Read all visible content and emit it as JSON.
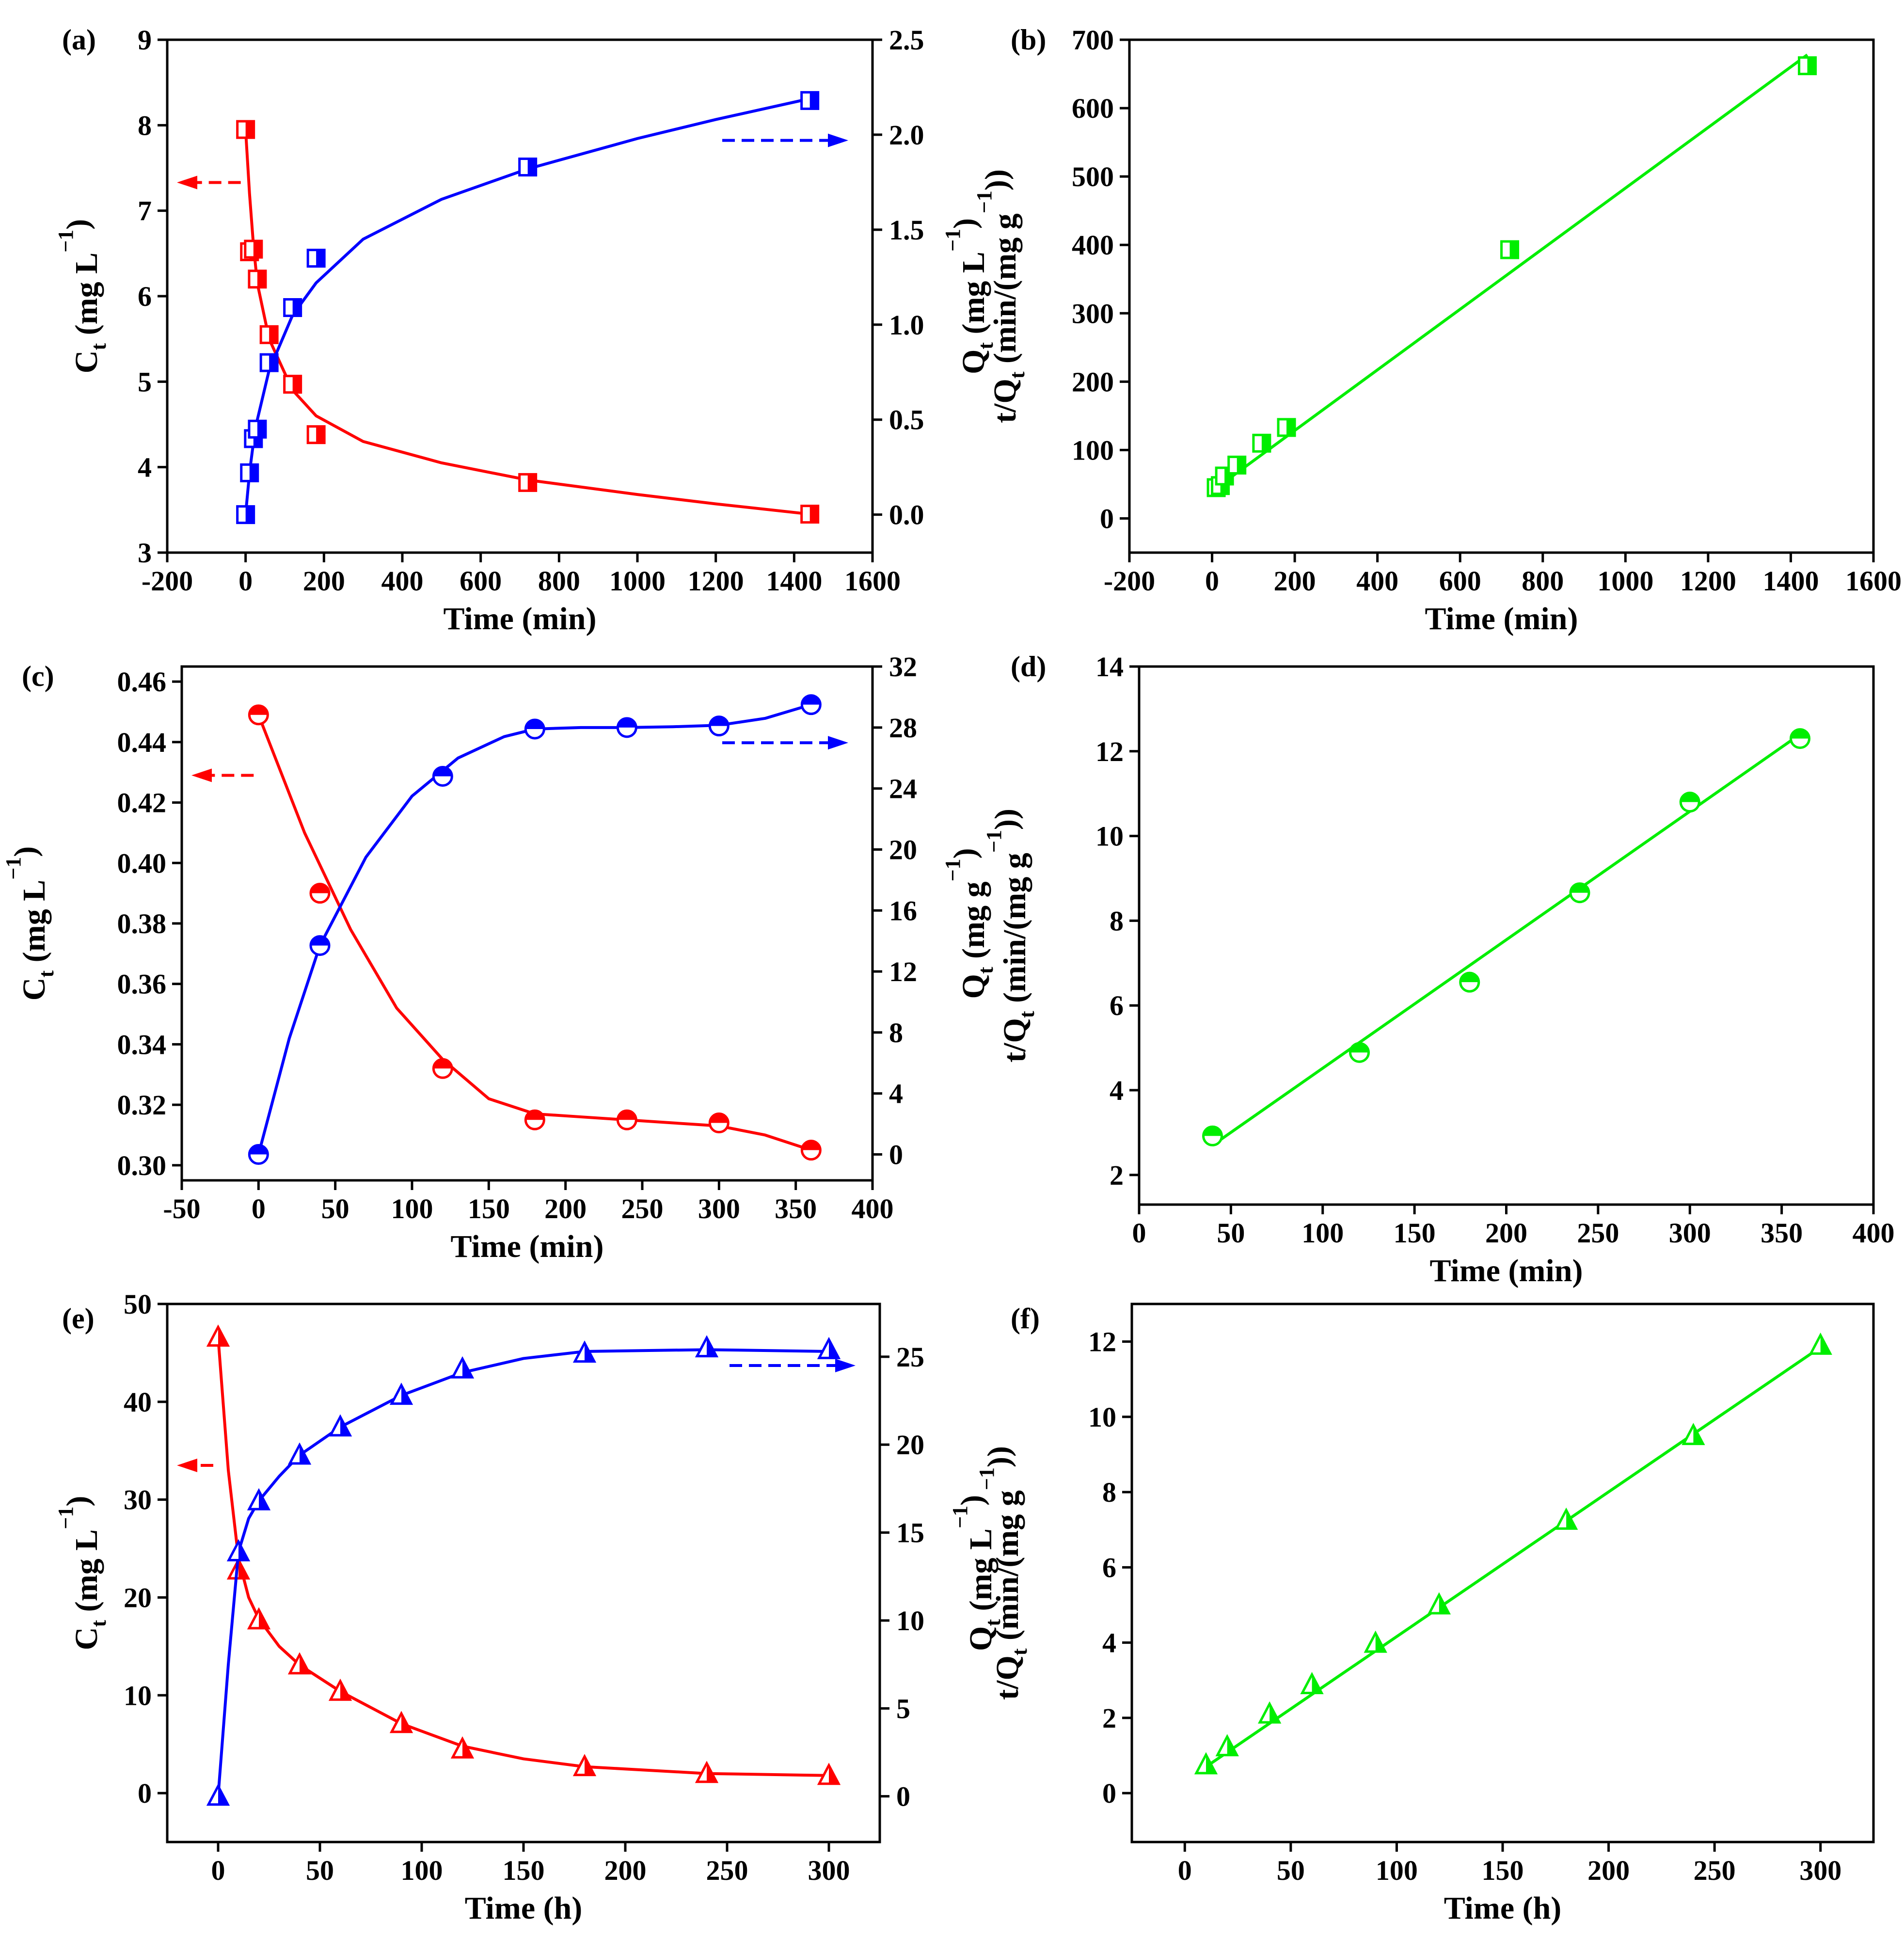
{
  "figure": {
    "colors": {
      "ct": "#ff0000",
      "qt": "#0000ff",
      "linear": "#00ee00",
      "axis": "#000000"
    },
    "markers": {
      "a": "square",
      "b": "square",
      "c": "circle",
      "d": "circle",
      "e": "triangle",
      "f": "triangle"
    }
  },
  "chart_data": [
    {
      "panel": "a",
      "label": "(a)",
      "type": "scatter",
      "xlabel": "Time (min)",
      "xlim": [
        -200,
        1600
      ],
      "xticks": [
        -200,
        0,
        200,
        400,
        600,
        800,
        1000,
        1200,
        1400,
        1600
      ],
      "ylabel": {
        "main": "C",
        "sub": "t",
        "unit": " (mg L",
        "sup": "−1",
        "close": ")"
      },
      "ylim": [
        3,
        9
      ],
      "yticks": [
        3,
        4,
        5,
        6,
        7,
        8,
        9
      ],
      "y2label": {
        "main": "Q",
        "sub": "t",
        "unit": " (mg L",
        "sup": "−1",
        "close": ")"
      },
      "y2lim": [
        -0.2,
        2.5
      ],
      "y2ticks": [
        "0.0",
        "0.5",
        "1.0",
        "1.5",
        "2.0",
        "2.5"
      ],
      "y2tickvals": [
        0,
        0.5,
        1.0,
        1.5,
        2.0,
        2.5
      ],
      "series": [
        {
          "name": "Ct",
          "axis": "left",
          "color": "#ff0000",
          "x": [
            0,
            10,
            20,
            30,
            60,
            120,
            180,
            720,
            1440
          ],
          "y": [
            7.95,
            6.52,
            6.55,
            6.2,
            5.55,
            4.97,
            4.38,
            3.82,
            3.45
          ],
          "fit_x": [
            0,
            10,
            20,
            30,
            60,
            120,
            180,
            300,
            500,
            720,
            1000,
            1200,
            1440
          ],
          "fit_y": [
            7.95,
            7.2,
            6.6,
            6.15,
            5.5,
            4.9,
            4.6,
            4.3,
            4.05,
            3.85,
            3.68,
            3.57,
            3.45
          ],
          "arrow": "left",
          "arrow_y": 7.33
        },
        {
          "name": "Qt",
          "axis": "right",
          "color": "#0000ff",
          "x": [
            0,
            10,
            20,
            30,
            60,
            120,
            180,
            720,
            1440
          ],
          "y": [
            0.0,
            0.22,
            0.4,
            0.45,
            0.8,
            1.09,
            1.35,
            1.83,
            2.18
          ],
          "fit_x": [
            0,
            10,
            20,
            30,
            60,
            120,
            180,
            300,
            500,
            720,
            1000,
            1200,
            1440
          ],
          "fit_y": [
            0.0,
            0.22,
            0.38,
            0.5,
            0.76,
            1.05,
            1.22,
            1.45,
            1.66,
            1.82,
            1.98,
            2.08,
            2.19
          ],
          "arrow": "right",
          "arrow_y": 1.97
        }
      ]
    },
    {
      "panel": "b",
      "label": "(b)",
      "type": "scatter",
      "xlabel": "Time (min)",
      "xlim": [
        -200,
        1600
      ],
      "xticks": [
        -200,
        0,
        200,
        400,
        600,
        800,
        1000,
        1200,
        1400,
        1600
      ],
      "ylabel": {
        "main": "t/Q",
        "sub": "t",
        "unit": " (min/(mg g",
        "sup": "−1",
        "close": "))"
      },
      "ylim": [
        -50,
        700
      ],
      "yticks": [
        0,
        100,
        200,
        300,
        400,
        500,
        600,
        700
      ],
      "series": [
        {
          "name": "t/Qt",
          "color": "#00ee00",
          "x": [
            10,
            20,
            30,
            60,
            120,
            180,
            720,
            1440
          ],
          "y": [
            45,
            48,
            62,
            78,
            110,
            133,
            393,
            662
          ],
          "fit_x": [
            0,
            1440
          ],
          "fit_y": [
            40,
            678
          ]
        }
      ]
    },
    {
      "panel": "c",
      "label": "(c)",
      "type": "scatter",
      "xlabel": "Time (min)",
      "xlim": [
        -50,
        400
      ],
      "xticks": [
        -50,
        0,
        50,
        100,
        150,
        200,
        250,
        300,
        350,
        400
      ],
      "ylabel": {
        "main": "C",
        "sub": "t",
        "unit": " (mg L",
        "sup": "−1",
        "close": ")"
      },
      "ylim": [
        0.295,
        0.465
      ],
      "yticks": [
        "0.30",
        "0.32",
        "0.34",
        "0.36",
        "0.38",
        "0.40",
        "0.42",
        "0.44",
        "0.46"
      ],
      "ytickvals": [
        0.3,
        0.32,
        0.34,
        0.36,
        0.38,
        0.4,
        0.42,
        0.44,
        0.46
      ],
      "y2label": {
        "main": "Q",
        "sub": "t",
        "unit": " (mg g",
        "sup": "−1",
        "close": ")"
      },
      "y2lim": [
        -1.7,
        32
      ],
      "y2ticks": [
        "0",
        "4",
        "8",
        "12",
        "16",
        "20",
        "24",
        "28",
        "32"
      ],
      "y2tickvals": [
        0,
        4,
        8,
        12,
        16,
        20,
        24,
        28,
        32
      ],
      "series": [
        {
          "name": "Ct",
          "axis": "left",
          "color": "#ff0000",
          "x": [
            0,
            40,
            120,
            180,
            240,
            300,
            360
          ],
          "y": [
            0.449,
            0.39,
            0.332,
            0.315,
            0.315,
            0.314,
            0.305
          ],
          "fit_x": [
            0,
            30,
            60,
            90,
            120,
            150,
            180,
            210,
            240,
            270,
            300,
            330,
            360
          ],
          "fit_y": [
            0.449,
            0.41,
            0.378,
            0.352,
            0.335,
            0.322,
            0.317,
            0.316,
            0.315,
            0.314,
            0.313,
            0.31,
            0.305
          ],
          "arrow": "left",
          "arrow_y": 0.429
        },
        {
          "name": "Qt",
          "axis": "right",
          "color": "#0000ff",
          "x": [
            0,
            40,
            120,
            180,
            240,
            300,
            360
          ],
          "y": [
            0.0,
            13.7,
            24.8,
            27.9,
            28.0,
            28.1,
            29.5
          ],
          "fit_x": [
            0,
            20,
            40,
            70,
            100,
            130,
            160,
            180,
            210,
            240,
            270,
            300,
            330,
            360
          ],
          "fit_y": [
            0.0,
            7.6,
            13.7,
            19.5,
            23.5,
            26.0,
            27.4,
            27.9,
            28.0,
            28.0,
            28.05,
            28.15,
            28.6,
            29.5
          ],
          "arrow": "right",
          "arrow_y": 27.0
        }
      ]
    },
    {
      "panel": "d",
      "label": "(d)",
      "type": "scatter",
      "xlabel": "Time (min)",
      "xlim": [
        0,
        400
      ],
      "xticks": [
        0,
        50,
        100,
        150,
        200,
        250,
        300,
        350,
        400
      ],
      "ylabel": {
        "main": "t/Q",
        "sub": "t",
        "unit": " (min/(mg g",
        "sup": "−1",
        "close": "))"
      },
      "ylim": [
        1.3,
        14
      ],
      "yticks": [
        2,
        4,
        6,
        8,
        10,
        12,
        14
      ],
      "series": [
        {
          "name": "t/Qt",
          "color": "#00ee00",
          "x": [
            40,
            120,
            180,
            240,
            300,
            360
          ],
          "y": [
            2.92,
            4.89,
            6.55,
            8.66,
            10.8,
            12.3
          ],
          "fit_x": [
            40,
            360
          ],
          "fit_y": [
            2.7,
            12.4
          ]
        }
      ]
    },
    {
      "panel": "e",
      "label": "(e)",
      "type": "scatter",
      "xlabel": "Time (h)",
      "xlim": [
        -25,
        325
      ],
      "xticks": [
        0,
        50,
        100,
        150,
        200,
        250,
        300
      ],
      "ylabel": {
        "main": "C",
        "sub": "t",
        "unit": " (mg L",
        "sup": "−1",
        "close": ")"
      },
      "ylim": [
        -5,
        50
      ],
      "yticks": [
        0,
        10,
        20,
        30,
        40,
        50
      ],
      "y2label": {
        "main": "Q",
        "sub": "t",
        "unit": " (mg L",
        "sup": "−1",
        "close": ")"
      },
      "y2lim": [
        -2.6,
        28
      ],
      "y2ticks": [
        "0",
        "5",
        "10",
        "15",
        "20",
        "25"
      ],
      "y2tickvals": [
        0,
        5,
        10,
        15,
        20,
        25
      ],
      "series": [
        {
          "name": "Ct",
          "axis": "left",
          "color": "#ff0000",
          "x": [
            0,
            10,
            20,
            40,
            60,
            90,
            120,
            180,
            240,
            300
          ],
          "y": [
            46.6,
            22.8,
            17.7,
            13.1,
            10.4,
            7.1,
            4.5,
            2.7,
            2.0,
            1.8
          ],
          "fit_x": [
            0,
            5,
            10,
            15,
            20,
            30,
            40,
            60,
            90,
            120,
            150,
            180,
            240,
            300
          ],
          "fit_y": [
            46.6,
            33.0,
            24.0,
            20.0,
            17.8,
            15.0,
            13.1,
            10.4,
            7.1,
            4.8,
            3.5,
            2.7,
            2.0,
            1.8
          ],
          "arrow": "left",
          "arrow_y": 33.5
        },
        {
          "name": "Qt",
          "axis": "right",
          "color": "#0000ff",
          "x": [
            0,
            10,
            20,
            40,
            60,
            90,
            120,
            180,
            240,
            300
          ],
          "y": [
            0.0,
            13.9,
            16.8,
            19.4,
            21.0,
            22.8,
            24.3,
            25.2,
            25.5,
            25.4
          ],
          "fit_x": [
            0,
            5,
            10,
            15,
            20,
            30,
            40,
            60,
            90,
            120,
            150,
            180,
            240,
            300
          ],
          "fit_y": [
            0.0,
            7.5,
            13.9,
            15.8,
            16.8,
            18.2,
            19.4,
            21.0,
            22.8,
            24.1,
            24.9,
            25.3,
            25.4,
            25.3
          ],
          "arrow": "right",
          "arrow_y": 24.5
        }
      ]
    },
    {
      "panel": "f",
      "label": "(f)",
      "type": "scatter",
      "xlabel": "Time (h)",
      "xlim": [
        -25,
        325
      ],
      "xticks": [
        0,
        50,
        100,
        150,
        200,
        250,
        300
      ],
      "ylabel": {
        "main": "t/Q",
        "sub": "t",
        "unit": " (min/(mg g",
        "sup": "−1",
        "close": "))"
      },
      "ylim": [
        -1.3,
        13
      ],
      "yticks": [
        0,
        2,
        4,
        6,
        8,
        10,
        12
      ],
      "series": [
        {
          "name": "t/Qt",
          "color": "#00ee00",
          "x": [
            10,
            20,
            40,
            60,
            90,
            120,
            180,
            240,
            300
          ],
          "y": [
            0.75,
            1.23,
            2.1,
            2.88,
            3.98,
            5.0,
            7.25,
            9.5,
            11.9
          ],
          "fit_x": [
            10,
            300
          ],
          "fit_y": [
            0.7,
            11.85
          ]
        }
      ]
    }
  ]
}
